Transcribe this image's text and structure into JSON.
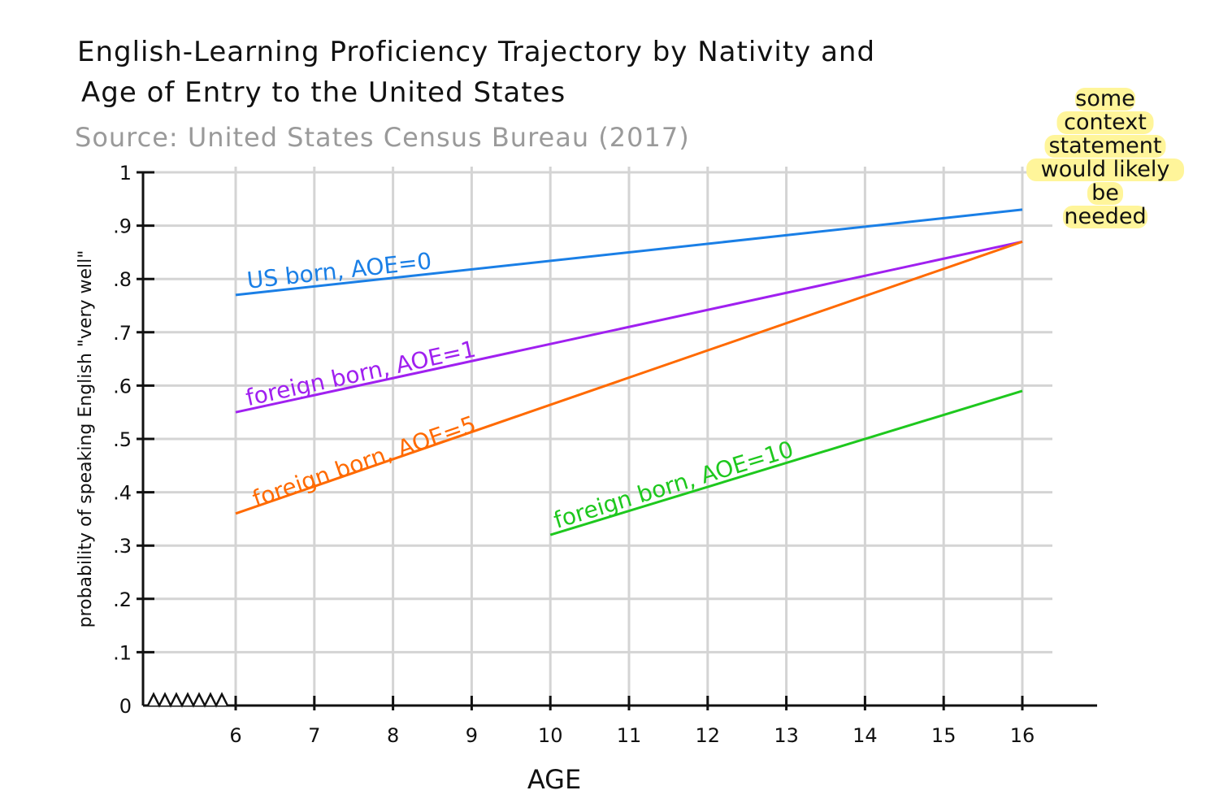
{
  "chart_data": {
    "type": "line",
    "title_line1": "English-Learning Proficiency Trajectory by Nativity and",
    "title_line2": "Age of Entry to the United States",
    "source": "Source: United States Census Bureau (2017)",
    "xlabel": "AGE",
    "ylabel": "probability of speaking English \"very well\"",
    "x_ticks": [
      "6",
      "7",
      "8",
      "9",
      "10",
      "11",
      "12",
      "13",
      "14",
      "15",
      "16"
    ],
    "y_ticks": [
      "0",
      ".1",
      ".2",
      ".3",
      ".4",
      ".5",
      ".6",
      ".7",
      ".8",
      ".9",
      "1"
    ],
    "xlim": [
      6,
      16
    ],
    "ylim": [
      0,
      1
    ],
    "grid": true,
    "x_axis_break": true,
    "series": [
      {
        "name": "US born, AOE=0",
        "color": "#1a7fe6",
        "x": [
          6,
          16
        ],
        "y": [
          0.77,
          0.93
        ]
      },
      {
        "name": "foreign born, AOE=1",
        "color": "#a020f0",
        "x": [
          6,
          16
        ],
        "y": [
          0.55,
          0.87
        ]
      },
      {
        "name": "foreign born, AOE=5",
        "color": "#ff6a00",
        "x": [
          6,
          16
        ],
        "y": [
          0.36,
          0.87
        ]
      },
      {
        "name": "foreign born, AOE=10",
        "color": "#1ec81e",
        "x": [
          10,
          16
        ],
        "y": [
          0.32,
          0.59
        ]
      }
    ],
    "annotation": {
      "lines": [
        "some",
        "context",
        "statement",
        "would likely",
        "be",
        "needed"
      ],
      "highlight_color": "#fff59a"
    }
  }
}
